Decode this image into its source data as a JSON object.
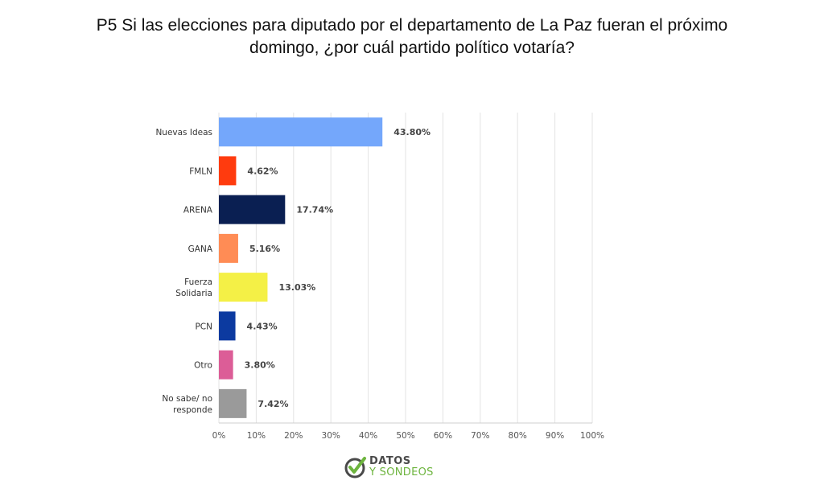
{
  "title_lines": [
    "P5 Si las elecciones para diputado por el departamento de La Paz fueran el próximo",
    "domingo, ¿por cuál partido político votaría?"
  ],
  "chart_data": {
    "type": "bar",
    "orientation": "horizontal",
    "title": "P5 Si las elecciones para diputado por el departamento de La Paz fueran el próximo domingo, ¿por cuál partido político votaría?",
    "categories": [
      [
        "Nuevas Ideas"
      ],
      [
        "FMLN"
      ],
      [
        "ARENA"
      ],
      [
        "GANA"
      ],
      [
        "Fuerza",
        "Solidaria"
      ],
      [
        "PCN"
      ],
      [
        "Otro"
      ],
      [
        "No sabe/ no",
        "responde"
      ]
    ],
    "values": [
      43.8,
      4.62,
      17.74,
      5.16,
      13.03,
      4.43,
      3.8,
      7.42
    ],
    "value_labels": [
      "43.80%",
      "4.62%",
      "17.74%",
      "5.16%",
      "13.03%",
      "4.43%",
      "3.80%",
      "7.42%"
    ],
    "colors": [
      "#74a7fb",
      "#ff3b0e",
      "#0a1f52",
      "#ff8c55",
      "#f4f046",
      "#0c3aa0",
      "#dc5d97",
      "#9a9a9a"
    ],
    "xlim": [
      0,
      100
    ],
    "x_ticks": [
      0,
      10,
      20,
      30,
      40,
      50,
      60,
      70,
      80,
      90,
      100
    ],
    "x_tick_labels": [
      "0%",
      "10%",
      "20%",
      "30%",
      "40%",
      "50%",
      "60%",
      "70%",
      "80%",
      "90%",
      "100%"
    ],
    "grid": true,
    "xlabel": "",
    "ylabel": ""
  },
  "logo": {
    "line1": "DATOS",
    "line2": "Y SONDEOS",
    "check_color": "#6db43e",
    "ring_color": "#4a4a4a"
  }
}
